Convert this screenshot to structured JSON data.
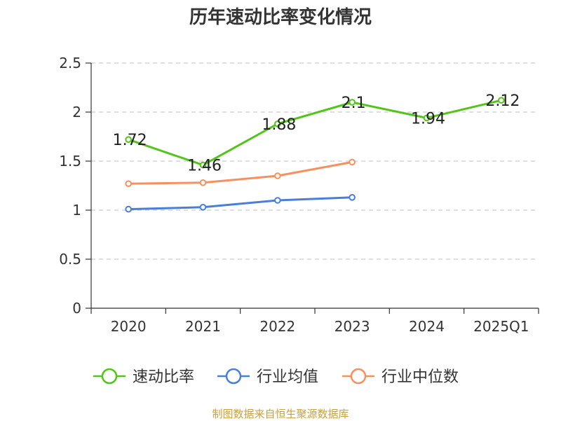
{
  "chart_data": {
    "type": "line",
    "title": "历年速动比率变化情况",
    "categories": [
      "2020",
      "2021",
      "2022",
      "2023",
      "2024",
      "2025Q1"
    ],
    "ylim": [
      0,
      2.5
    ],
    "yticks": [
      "0",
      "0.5",
      "1",
      "1.5",
      "2",
      "2.5"
    ],
    "ytick_values": [
      0,
      0.5,
      1,
      1.5,
      2,
      2.5
    ],
    "grid": true,
    "legend_position": "bottom",
    "series": [
      {
        "name": "速动比率",
        "color": "#52c41a",
        "values": [
          1.72,
          1.46,
          1.88,
          2.1,
          1.94,
          2.12
        ],
        "labels": [
          "1.72",
          "1.46",
          "1.88",
          "2.1",
          "1.94",
          "2.12"
        ]
      },
      {
        "name": "行业均值",
        "color": "#4a7fd9",
        "values": [
          1.01,
          1.03,
          1.1,
          1.13,
          null,
          null
        ]
      },
      {
        "name": "行业中位数",
        "color": "#f7905f",
        "values": [
          1.27,
          1.28,
          1.35,
          1.49,
          null,
          null
        ]
      }
    ]
  },
  "footer": {
    "source": "制图数据来自恒生聚源数据库"
  }
}
